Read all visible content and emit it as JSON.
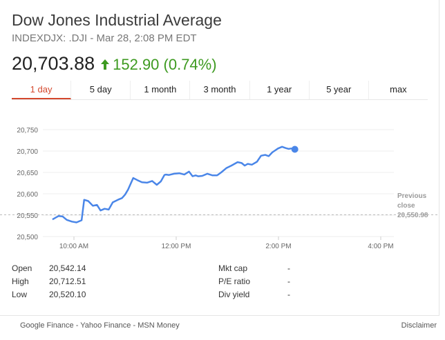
{
  "header": {
    "title": "Dow Jones Industrial Average",
    "subtitle": "INDEXDJX: .DJI - Mar 28, 2:08 PM EDT",
    "price": "20,703.88",
    "change": "152.90 (0.74%)",
    "change_color": "#3d9a20"
  },
  "tabs": [
    {
      "label": "1 day",
      "active": true
    },
    {
      "label": "5 day"
    },
    {
      "label": "1 month"
    },
    {
      "label": "3 month"
    },
    {
      "label": "1 year"
    },
    {
      "label": "5 year"
    },
    {
      "label": "max"
    }
  ],
  "chart_data": {
    "type": "line",
    "line_color": "#4a86e8",
    "x_unit": "hours since 9:30 AM",
    "y_ticks": [
      "20,750",
      "20,700",
      "20,650",
      "20,600",
      "20,550",
      "20,500"
    ],
    "x_ticks": [
      "10:00 AM",
      "12:00 PM",
      "2:00 PM",
      "4:00 PM"
    ],
    "ylim": [
      20500,
      20750
    ],
    "previous_close": {
      "label_line1": "Previous",
      "label_line2": "close",
      "value_label": "20,550.98",
      "value": 20550.98
    },
    "series": [
      {
        "x": [
          0.08,
          0.2,
          0.28,
          0.36,
          0.46,
          0.55,
          0.65,
          0.7,
          0.78,
          0.87,
          0.95,
          1.02,
          1.1,
          1.18,
          1.26,
          1.36,
          1.44,
          1.5,
          1.56,
          1.6,
          1.66,
          1.74,
          1.83,
          1.93,
          2.03,
          2.12,
          2.2,
          2.27,
          2.3,
          2.36,
          2.46,
          2.56,
          2.66,
          2.75,
          2.82,
          2.88,
          2.93,
          3.01,
          3.11,
          3.21,
          3.3,
          3.38,
          3.48,
          3.58,
          3.7,
          3.78,
          3.84,
          3.9,
          3.98,
          4.08,
          4.16,
          4.24,
          4.31,
          4.38,
          4.43,
          4.49,
          4.57,
          4.64,
          4.7,
          4.75,
          4.82
        ],
        "y": [
          20540,
          20548,
          20547,
          20539,
          20535,
          20533,
          20538,
          20586,
          20583,
          20572,
          20574,
          20561,
          20565,
          20563,
          20580,
          20586,
          20590,
          20598,
          20610,
          20621,
          20637,
          20632,
          20627,
          20626,
          20630,
          20621,
          20629,
          20644,
          20645,
          20644,
          20647,
          20648,
          20645,
          20652,
          20641,
          20643,
          20641,
          20642,
          20647,
          20643,
          20643,
          20650,
          20660,
          20666,
          20674,
          20672,
          20666,
          20670,
          20668,
          20675,
          20689,
          20691,
          20688,
          20697,
          20701,
          20706,
          20710,
          20707,
          20705,
          20706,
          20704
        ]
      }
    ],
    "last_point": {
      "x": 4.82,
      "y": 20704
    }
  },
  "stats_left": [
    {
      "label": "Open",
      "value": "20,542.14"
    },
    {
      "label": "High",
      "value": "20,712.51"
    },
    {
      "label": "Low",
      "value": "20,520.10"
    }
  ],
  "stats_right": [
    {
      "label": "Mkt cap",
      "value": "-"
    },
    {
      "label": "P/E ratio",
      "value": "-"
    },
    {
      "label": "Div yield",
      "value": "-"
    }
  ],
  "footer": {
    "sources": "Google Finance - Yahoo Finance - MSN Money",
    "disclaimer": "Disclaimer"
  }
}
